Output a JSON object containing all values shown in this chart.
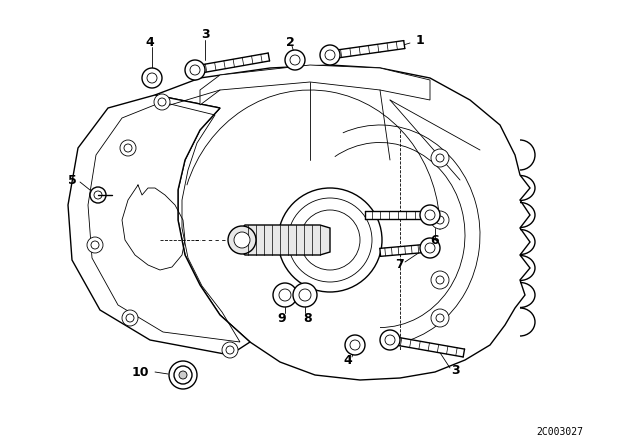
{
  "bg_color": "#ffffff",
  "line_color": "#000000",
  "watermark": "2C003027",
  "lw_main": 1.0,
  "lw_thin": 0.6,
  "label_fontsize": 9
}
